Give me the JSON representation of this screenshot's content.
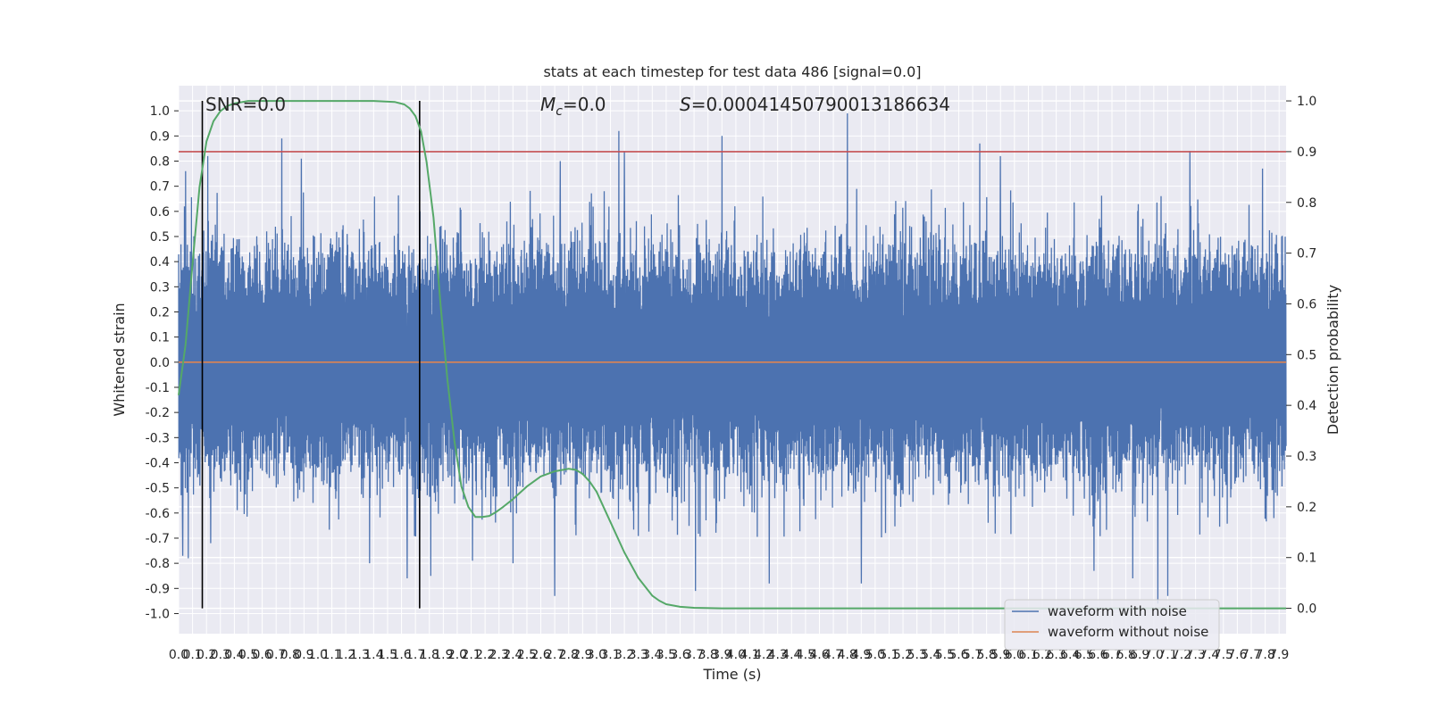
{
  "chart_data": {
    "type": "line",
    "title": "stats at each timestep for test data 486 [signal=0.0]",
    "xlabel": "Time (s)",
    "ylabel": "Whitened strain",
    "y2label": "Detection probability",
    "xlim": [
      0.0,
      7.95
    ],
    "ylim": [
      -1.08,
      1.1
    ],
    "y2lim": [
      -0.05,
      1.03
    ],
    "x_ticks": [
      "0.0",
      "0.1",
      "0.2",
      "0.3",
      "0.4",
      "0.5",
      "0.6",
      "0.7",
      "0.8",
      "0.9",
      "1.0",
      "1.1",
      "1.2",
      "1.3",
      "1.4",
      "1.5",
      "1.6",
      "1.7",
      "1.8",
      "1.9",
      "2.0",
      "2.1",
      "2.2",
      "2.3",
      "2.4",
      "2.5",
      "2.6",
      "2.7",
      "2.8",
      "2.9",
      "3.0",
      "3.1",
      "3.2",
      "3.3",
      "3.4",
      "3.5",
      "3.6",
      "3.7",
      "3.8",
      "3.9",
      "4.0",
      "4.1",
      "4.2",
      "4.3",
      "4.4",
      "4.5",
      "4.6",
      "4.7",
      "4.8",
      "4.9",
      "5.0",
      "5.1",
      "5.2",
      "5.3",
      "5.4",
      "5.5",
      "5.6",
      "5.7",
      "5.8",
      "5.9",
      "6.0",
      "6.1",
      "6.2",
      "6.3",
      "6.4",
      "6.5",
      "6.6",
      "6.7",
      "6.8",
      "6.9",
      "7.0",
      "7.1",
      "7.2",
      "7.3",
      "7.4",
      "7.5",
      "7.6",
      "7.7",
      "7.8",
      "7.9"
    ],
    "y_ticks": [
      "1.0",
      "0.9",
      "0.8",
      "0.7",
      "0.6",
      "0.5",
      "0.4",
      "0.3",
      "0.2",
      "0.1",
      "0.0",
      "-0.1",
      "-0.2",
      "-0.3",
      "-0.4",
      "-0.5",
      "-0.6",
      "-0.7",
      "-0.8",
      "-0.9",
      "-1.0"
    ],
    "y2_ticks": [
      "1.0",
      "0.9",
      "0.8",
      "0.7",
      "0.6",
      "0.5",
      "0.4",
      "0.3",
      "0.2",
      "0.1",
      "0.0"
    ],
    "annotations": {
      "snr": "SNR=0.0",
      "mc_symbol": "M",
      "mc_sub": "c",
      "mc_value": "=0.0",
      "s_symbol": "S",
      "s_value": "=0.00041450790013186634"
    },
    "vlines_x": [
      0.17,
      1.73
    ],
    "threshold_y2": 0.9,
    "series": [
      {
        "name": "waveform with noise",
        "axis": "left",
        "color": "#4c72b0",
        "summary": "dense noise trace oscillating roughly between -0.95 and 0.97 over the full 0-7.95 s range",
        "spikes": [
          {
            "x": 0.02,
            "y": 0.27
          },
          {
            "x": 0.03,
            "y": -0.77
          },
          {
            "x": 0.05,
            "y": 0.76
          },
          {
            "x": 0.07,
            "y": -0.78
          },
          {
            "x": 0.21,
            "y": 0.82
          },
          {
            "x": 0.23,
            "y": -0.72
          },
          {
            "x": 0.74,
            "y": 0.89
          },
          {
            "x": 0.88,
            "y": 0.81
          },
          {
            "x": 1.37,
            "y": -0.8
          },
          {
            "x": 1.64,
            "y": -0.86
          },
          {
            "x": 1.81,
            "y": -0.85
          },
          {
            "x": 2.11,
            "y": -0.79
          },
          {
            "x": 2.4,
            "y": -0.8
          },
          {
            "x": 2.7,
            "y": -0.93
          },
          {
            "x": 2.74,
            "y": 0.8
          },
          {
            "x": 3.16,
            "y": 0.92
          },
          {
            "x": 3.2,
            "y": 0.84
          },
          {
            "x": 3.71,
            "y": -0.91
          },
          {
            "x": 3.9,
            "y": 0.9
          },
          {
            "x": 4.24,
            "y": -0.88
          },
          {
            "x": 4.8,
            "y": 0.99
          },
          {
            "x": 4.9,
            "y": -0.88
          },
          {
            "x": 5.75,
            "y": 0.87
          },
          {
            "x": 5.9,
            "y": 0.82
          },
          {
            "x": 6.57,
            "y": -0.83
          },
          {
            "x": 6.85,
            "y": -0.86
          },
          {
            "x": 7.03,
            "y": -0.96
          },
          {
            "x": 7.1,
            "y": -0.93
          },
          {
            "x": 7.26,
            "y": 0.84
          },
          {
            "x": 7.78,
            "y": 0.77
          }
        ]
      },
      {
        "name": "waveform without noise",
        "axis": "left",
        "color": "#dd8452",
        "x": [
          0.0,
          7.95
        ],
        "y": [
          0.0,
          0.0
        ]
      },
      {
        "axis": "right",
        "color": "#55a868",
        "x": [
          0.0,
          0.05,
          0.1,
          0.15,
          0.2,
          0.25,
          0.3,
          0.35,
          0.4,
          0.5,
          0.6,
          0.8,
          1.0,
          1.2,
          1.4,
          1.55,
          1.62,
          1.66,
          1.7,
          1.74,
          1.78,
          1.83,
          1.88,
          1.93,
          1.98,
          2.03,
          2.08,
          2.13,
          2.18,
          2.23,
          2.28,
          2.33,
          2.4,
          2.5,
          2.6,
          2.7,
          2.8,
          2.85,
          2.9,
          2.95,
          3.0,
          3.05,
          3.1,
          3.2,
          3.3,
          3.4,
          3.45,
          3.5,
          3.6,
          3.7,
          3.9,
          4.5,
          5.5,
          6.5,
          7.5,
          7.95
        ],
        "y": [
          0.42,
          0.52,
          0.68,
          0.83,
          0.92,
          0.96,
          0.98,
          0.99,
          0.995,
          1.0,
          1.0,
          1.0,
          1.0,
          1.0,
          1.0,
          0.998,
          0.993,
          0.985,
          0.97,
          0.94,
          0.88,
          0.77,
          0.6,
          0.45,
          0.33,
          0.24,
          0.2,
          0.18,
          0.18,
          0.182,
          0.19,
          0.2,
          0.215,
          0.24,
          0.26,
          0.27,
          0.275,
          0.273,
          0.265,
          0.25,
          0.23,
          0.2,
          0.17,
          0.11,
          0.06,
          0.025,
          0.015,
          0.008,
          0.003,
          0.001,
          0.0,
          0.0,
          0.0,
          0.0,
          0.0,
          0.0
        ]
      }
    ],
    "legend": {
      "placement": "lower-right",
      "entries": [
        "waveform with noise",
        "waveform without noise"
      ]
    },
    "grid": true,
    "background_color": "#eaeaf2",
    "threshold_color": "#c44e52"
  }
}
